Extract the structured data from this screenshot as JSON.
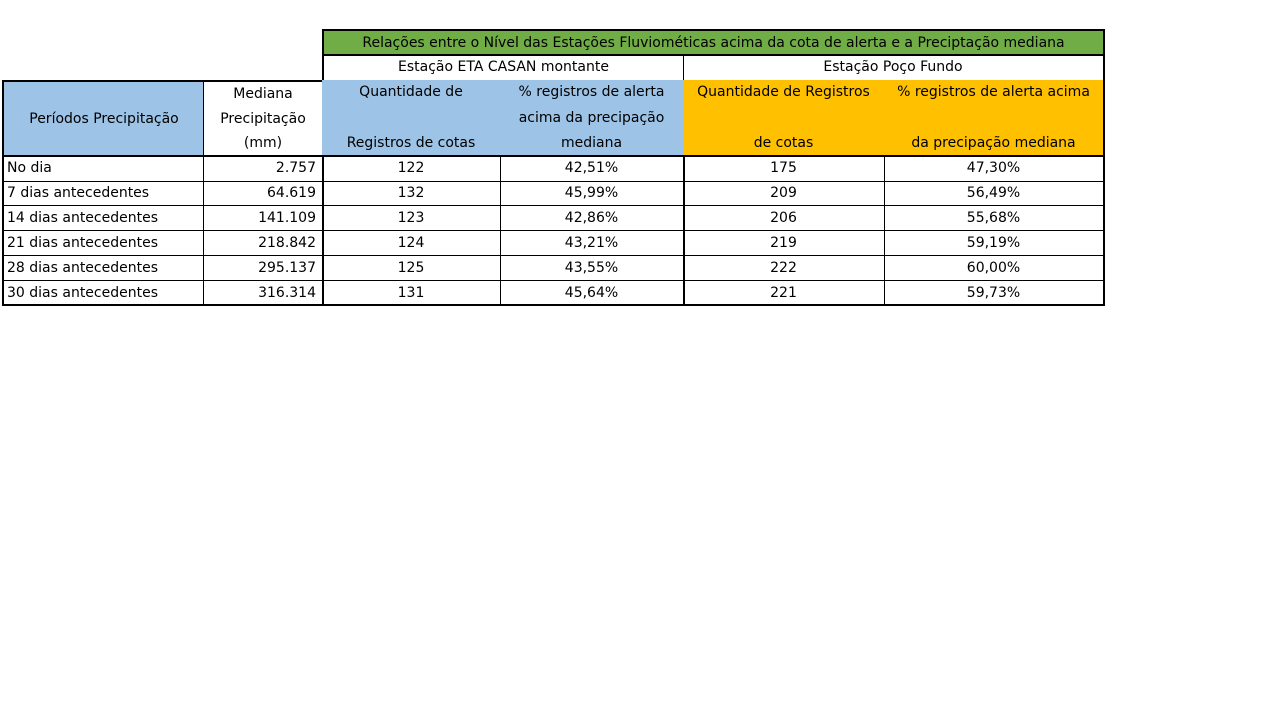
{
  "table": {
    "main_title": "Relações entre o Nível das Estações Fluviométicas acima da cota de alerta e a Preciptação mediana",
    "station1": "Estação ETA CASAN montante",
    "station2": "Estação Poço Fundo",
    "headers": {
      "periodos": "Períodos Precipitação",
      "mediana": [
        "Mediana",
        "Precipitação",
        "(mm)"
      ],
      "qtd1": [
        "Quantidade de",
        "",
        "Registros de cotas"
      ],
      "pct1": [
        "% registros  de alerta",
        "acima da precipação",
        "mediana"
      ],
      "qtd2": [
        "Quantidade de Registros",
        "",
        "de cotas"
      ],
      "pct2": [
        "% registros  de alerta acima",
        "",
        "da precipação mediana"
      ]
    },
    "rows": [
      {
        "periodo": "No dia",
        "mediana": "2.757",
        "qtd1": "122",
        "pct1": "42,51%",
        "qtd2": "175",
        "pct2": "47,30%"
      },
      {
        "periodo": "7 dias antecedentes",
        "mediana": "64.619",
        "qtd1": "132",
        "pct1": "45,99%",
        "qtd2": "209",
        "pct2": "56,49%"
      },
      {
        "periodo": "14 dias antecedentes",
        "mediana": "141.109",
        "qtd1": "123",
        "pct1": "42,86%",
        "qtd2": "206",
        "pct2": "55,68%"
      },
      {
        "periodo": "21 dias antecedentes",
        "mediana": "218.842",
        "qtd1": "124",
        "pct1": "43,21%",
        "qtd2": "219",
        "pct2": "59,19%"
      },
      {
        "periodo": "28 dias antecedentes",
        "mediana": "295.137",
        "qtd1": "125",
        "pct1": "43,55%",
        "qtd2": "222",
        "pct2": "60,00%"
      },
      {
        "periodo": "30 dias antecedentes",
        "mediana": "316.314",
        "qtd1": "131",
        "pct1": "45,64%",
        "qtd2": "221",
        "pct2": "59,73%"
      }
    ],
    "colors": {
      "title_bg": "#70ad47",
      "blue_header": "#9dc3e6",
      "gold_header": "#ffc000"
    }
  }
}
